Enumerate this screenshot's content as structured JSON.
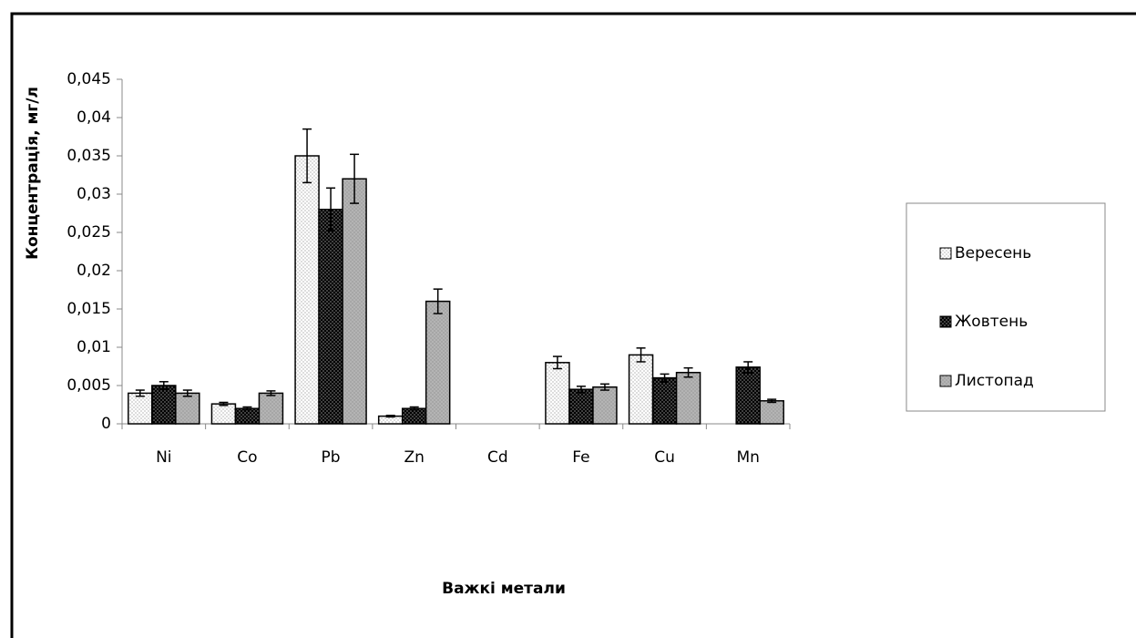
{
  "chart_data": {
    "type": "bar",
    "y_label": "Концентрація, мг/л",
    "x_label": "Важкі метали",
    "categories": [
      "Ni",
      "Co",
      "Pb",
      "Zn",
      "Cd",
      "Fe",
      "Cu",
      "Mn"
    ],
    "series": [
      {
        "name": "Вересень",
        "color": "#ffffff",
        "values": [
          0.004,
          0.0026,
          0.035,
          0.001,
          0,
          0.008,
          0.009,
          0
        ],
        "errors": [
          0.0004,
          0.0002,
          0.0035,
          0.0001,
          0,
          0.0008,
          0.0009,
          0
        ]
      },
      {
        "name": "Жовтень",
        "color": "#000000",
        "values": [
          0.005,
          0.002,
          0.028,
          0.002,
          0,
          0.0045,
          0.006,
          0.0074
        ],
        "errors": [
          0.0005,
          0.0002,
          0.0028,
          0.0002,
          0,
          0.0004,
          0.0005,
          0.0007
        ]
      },
      {
        "name": "Листопад",
        "color": "#a6a6a6",
        "values": [
          0.004,
          0.004,
          0.032,
          0.016,
          0,
          0.0048,
          0.0067,
          0.003
        ],
        "errors": [
          0.0004,
          0.0003,
          0.0032,
          0.0016,
          0,
          0.0004,
          0.0006,
          0.0002
        ]
      }
    ],
    "ylim": [
      0,
      0.045
    ],
    "yticks": [
      0,
      {
        "value": 0.005,
        "label": "0,005"
      },
      {
        "value": 0.01,
        "label": "0,01"
      },
      {
        "value": 0.015,
        "label": "0,015"
      },
      {
        "value": 0.02,
        "label": "0,02"
      },
      {
        "value": 0.025,
        "label": "0,025"
      },
      {
        "value": 0.03,
        "label": "0,03"
      },
      {
        "value": 0.035,
        "label": "0,035"
      },
      {
        "value": 0.04,
        "label": "0,04"
      },
      {
        "value": 0.045,
        "label": "0,045"
      }
    ],
    "legend": "right",
    "error_bars": true
  }
}
